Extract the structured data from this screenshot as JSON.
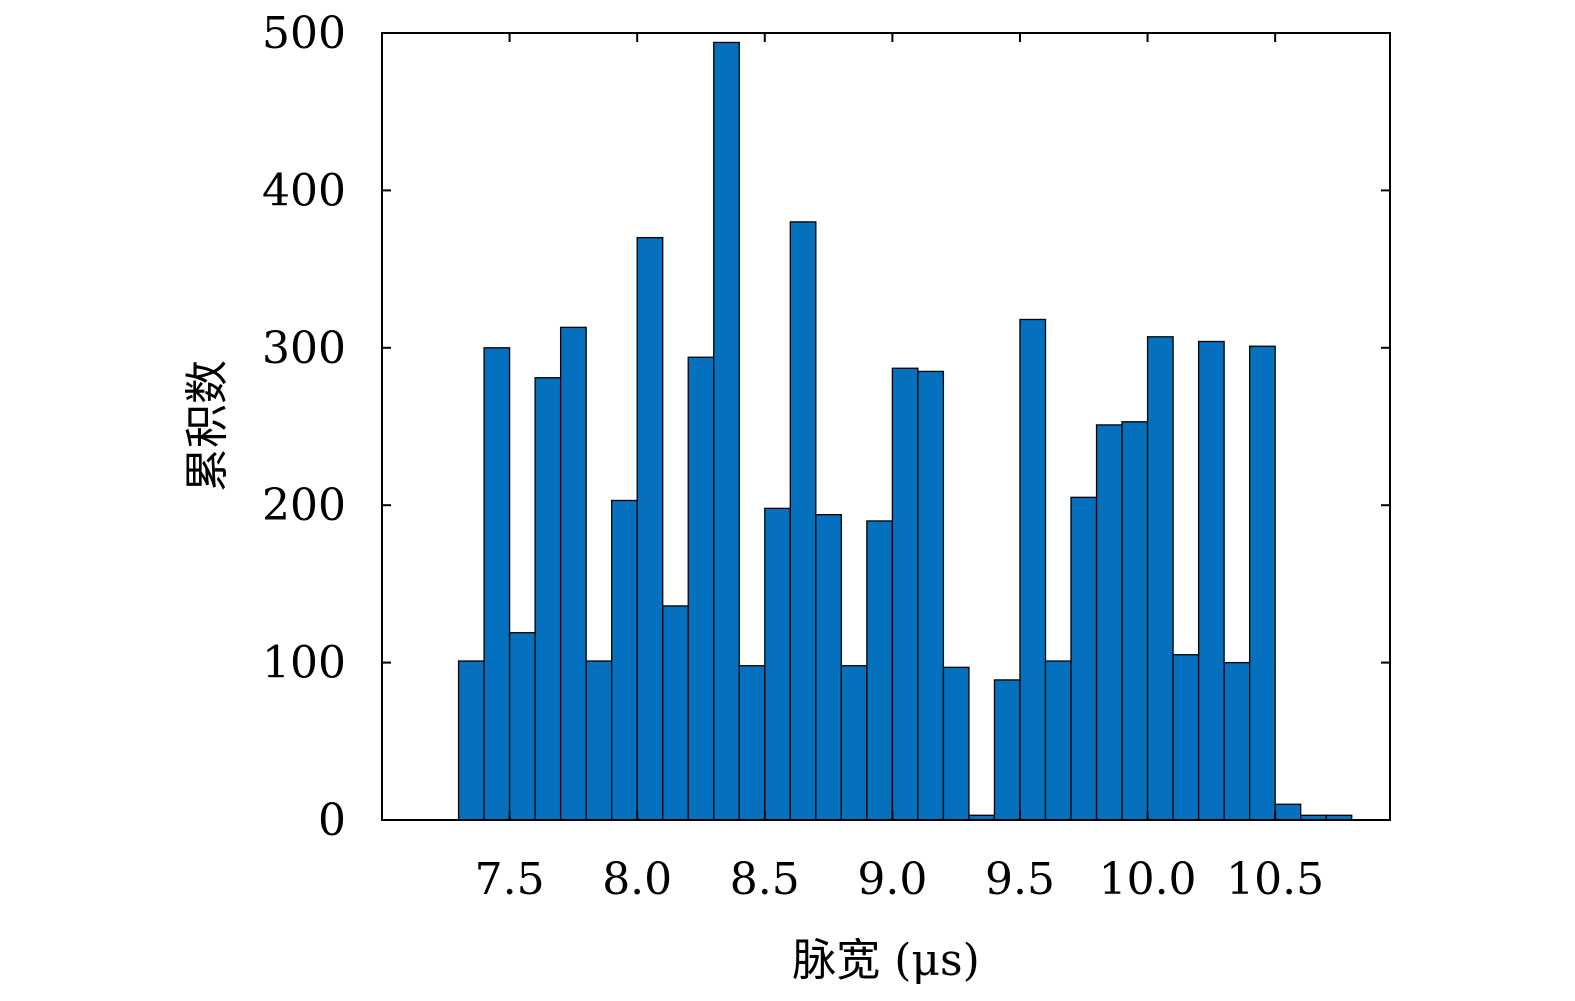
{
  "chart_data": {
    "type": "bar",
    "title": "",
    "xlabel": "脉宽 (μs)",
    "ylabel": "累积数",
    "xlim": [
      7.0,
      10.95
    ],
    "ylim": [
      0,
      500
    ],
    "xticks": [
      7.5,
      8.0,
      8.5,
      9.0,
      9.5,
      10.0,
      10.5
    ],
    "xtick_labels": [
      "7.5",
      "8.0",
      "8.5",
      "9.0",
      "9.5",
      "10.0",
      "10.5"
    ],
    "yticks": [
      0,
      100,
      200,
      300,
      400,
      500
    ],
    "ytick_labels": [
      "0",
      "100",
      "200",
      "300",
      "400",
      "500"
    ],
    "bin_width": 0.1,
    "bin_start": 7.3,
    "values": [
      101,
      300,
      119,
      281,
      313,
      101,
      203,
      370,
      136,
      294,
      494,
      98,
      198,
      380,
      194,
      98,
      190,
      287,
      285,
      97,
      3,
      89,
      318,
      101,
      205,
      251,
      253,
      307,
      105,
      304,
      100,
      301,
      10,
      3,
      3
    ],
    "bar_color": "#0570bd",
    "grid": false,
    "legend": "none"
  }
}
